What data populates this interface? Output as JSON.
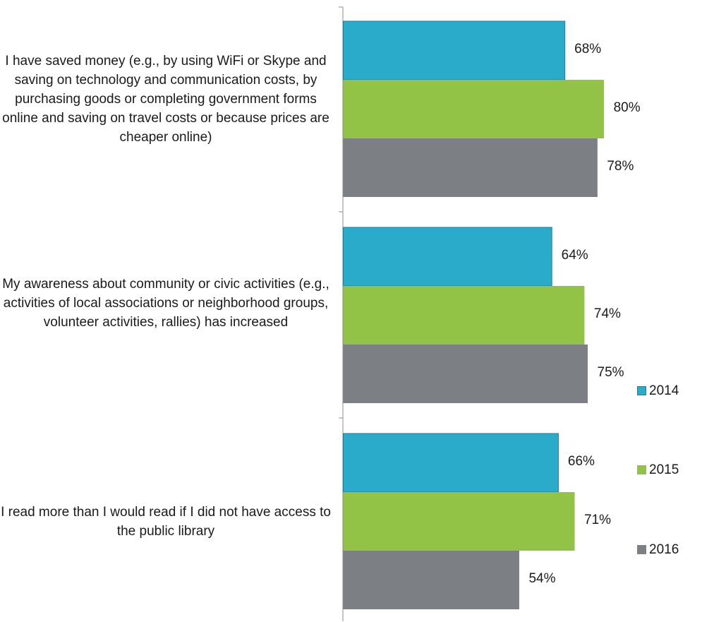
{
  "chart_data": {
    "type": "bar",
    "orientation": "horizontal",
    "categories": [
      "I have saved money (e.g., by using WiFi or Skype and saving on technology and communication costs, by purchasing goods or completing government forms online and saving on travel costs or because prices are cheaper online)",
      "My awareness about community or civic activities (e.g., activities of local associations or neighborhood groups, volunteer activities, rallies) has increased",
      "I read more than I would read if I did not have access to the public library"
    ],
    "series": [
      {
        "name": "2014",
        "color": "#2aabca",
        "values": [
          68,
          64,
          66
        ],
        "labels": [
          "68%",
          "64%",
          "66%"
        ]
      },
      {
        "name": "2015",
        "color": "#92c347",
        "values": [
          80,
          74,
          71
        ],
        "labels": [
          "80%",
          "74%",
          "71%"
        ]
      },
      {
        "name": "2016",
        "color": "#7c7f84",
        "values": [
          78,
          75,
          54
        ],
        "labels": [
          "78%",
          "75%",
          "54%"
        ]
      }
    ],
    "xlim": [
      0,
      100
    ],
    "grid": false,
    "legend": "right"
  }
}
